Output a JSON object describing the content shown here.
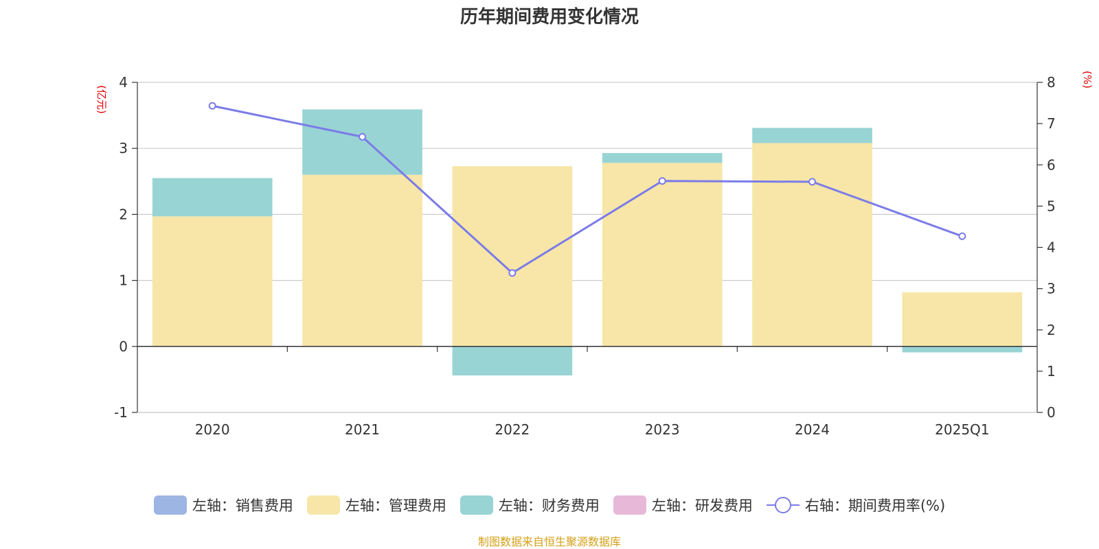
{
  "chart_data": {
    "type": "bar",
    "title": "历年期间费用变化情况",
    "categories": [
      "2020",
      "2021",
      "2022",
      "2023",
      "2024",
      "2025Q1"
    ],
    "stacked": true,
    "left_axis": {
      "unit_label": "(亿元)",
      "ylim": [
        -1,
        4
      ],
      "ticks": [
        "-1",
        "0",
        "1",
        "2",
        "3",
        "4"
      ]
    },
    "right_axis": {
      "unit_label": "(%)",
      "ylim": [
        0,
        8
      ],
      "ticks": [
        "0",
        "1",
        "2",
        "3",
        "4",
        "5",
        "6",
        "7",
        "8"
      ]
    },
    "series": [
      {
        "name": "左轴：销售费用",
        "axis": "left",
        "type": "bar",
        "color": "#9db5e3",
        "values": [
          0,
          0,
          0,
          0,
          0,
          0
        ]
      },
      {
        "name": "左轴：管理费用",
        "axis": "left",
        "type": "bar",
        "color": "#f7e6a8",
        "values": [
          1.97,
          2.6,
          2.73,
          2.78,
          3.08,
          0.82
        ]
      },
      {
        "name": "左轴：财务费用",
        "axis": "left",
        "type": "bar",
        "color": "#99d4d4",
        "values": [
          0.58,
          0.99,
          -0.44,
          0.15,
          0.23,
          -0.09
        ]
      },
      {
        "name": "左轴：研发费用",
        "axis": "left",
        "type": "bar",
        "color": "#e8b8d8",
        "values": [
          0,
          0,
          0,
          0,
          0,
          0
        ]
      },
      {
        "name": "右轴：期间费用率(%)",
        "axis": "right",
        "type": "line",
        "color": "#7b7be8",
        "values": [
          7.43,
          6.68,
          3.38,
          5.61,
          5.59,
          4.27
        ]
      }
    ]
  },
  "source_note": "制图数据来自恒生聚源数据库"
}
